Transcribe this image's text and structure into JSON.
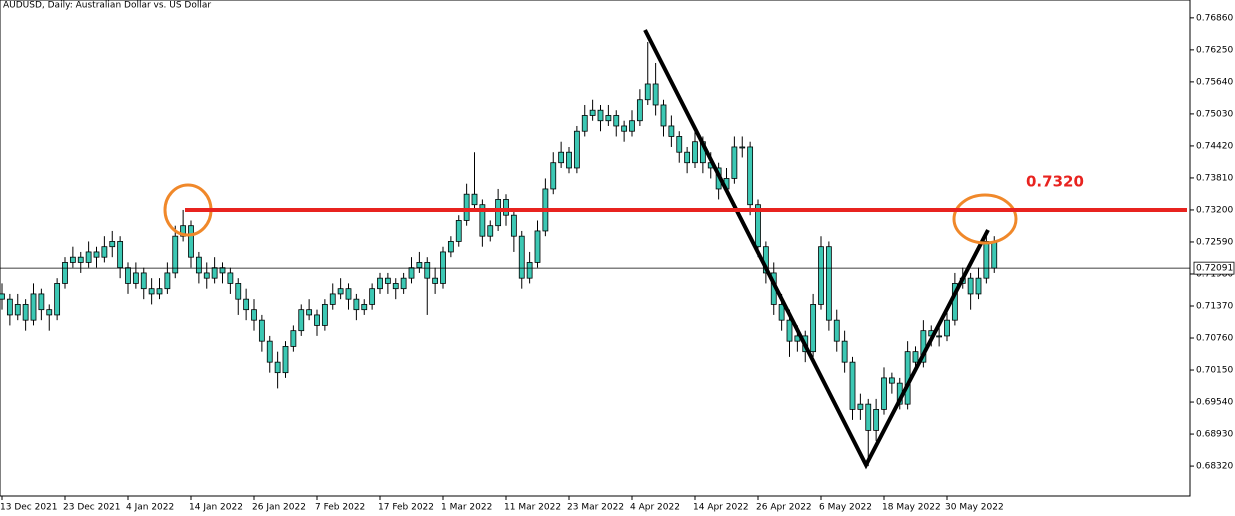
{
  "chart_data": {
    "type": "candlestick",
    "title": "AUDUSD, Daily:  Australian Dollar vs. US Dollar",
    "color": "#3cc8b4",
    "wick_color": "#000000",
    "categories": [
      "13 Dec 2021",
      null,
      null,
      null,
      null,
      null,
      null,
      null,
      "23 Dec 2021",
      null,
      null,
      null,
      null,
      null,
      null,
      null,
      "4 Jan 2022",
      null,
      null,
      null,
      null,
      null,
      null,
      null,
      "14 Jan 2022",
      null,
      null,
      null,
      null,
      null,
      null,
      null,
      "26 Jan 2022",
      null,
      null,
      null,
      null,
      null,
      null,
      null,
      "7 Feb 2022",
      null,
      null,
      null,
      null,
      null,
      null,
      null,
      "17 Feb 2022",
      null,
      null,
      null,
      null,
      null,
      null,
      null,
      "1 Mar 2022",
      null,
      null,
      null,
      null,
      null,
      null,
      null,
      "11 Mar 2022",
      null,
      null,
      null,
      null,
      null,
      null,
      null,
      "23 Mar 2022",
      null,
      null,
      null,
      null,
      null,
      null,
      null,
      "4 Apr 2022",
      null,
      null,
      null,
      null,
      null,
      null,
      null,
      "14 Apr 2022",
      null,
      null,
      null,
      null,
      null,
      null,
      null,
      "26 Apr 2022",
      null,
      null,
      null,
      null,
      null,
      null,
      null,
      "6 May 2022",
      null,
      null,
      null,
      null,
      null,
      null,
      null,
      "18 May 2022",
      null,
      null,
      null,
      null,
      null,
      null,
      null,
      "30 May 2022",
      null,
      null,
      null,
      null,
      null,
      null
    ],
    "ohlc": [
      [
        0.716,
        0.718,
        0.713,
        0.715
      ],
      [
        0.715,
        0.716,
        0.71,
        0.712
      ],
      [
        0.712,
        0.716,
        0.711,
        0.714
      ],
      [
        0.714,
        0.715,
        0.709,
        0.711
      ],
      [
        0.711,
        0.718,
        0.71,
        0.716
      ],
      [
        0.716,
        0.717,
        0.711,
        0.713
      ],
      [
        0.713,
        0.714,
        0.709,
        0.712
      ],
      [
        0.712,
        0.719,
        0.711,
        0.718
      ],
      [
        0.718,
        0.723,
        0.717,
        0.722
      ],
      [
        0.722,
        0.725,
        0.721,
        0.723
      ],
      [
        0.723,
        0.724,
        0.72,
        0.722
      ],
      [
        0.722,
        0.726,
        0.721,
        0.724
      ],
      [
        0.724,
        0.725,
        0.721,
        0.723
      ],
      [
        0.723,
        0.727,
        0.722,
        0.725
      ],
      [
        0.725,
        0.728,
        0.723,
        0.726
      ],
      [
        0.726,
        0.727,
        0.719,
        0.721
      ],
      [
        0.721,
        0.722,
        0.716,
        0.718
      ],
      [
        0.718,
        0.722,
        0.717,
        0.72
      ],
      [
        0.72,
        0.721,
        0.715,
        0.717
      ],
      [
        0.717,
        0.719,
        0.714,
        0.716
      ],
      [
        0.716,
        0.719,
        0.715,
        0.717
      ],
      [
        0.717,
        0.722,
        0.716,
        0.72
      ],
      [
        0.72,
        0.729,
        0.719,
        0.727
      ],
      [
        0.727,
        0.732,
        0.726,
        0.729
      ],
      [
        0.729,
        0.73,
        0.721,
        0.723
      ],
      [
        0.723,
        0.724,
        0.718,
        0.72
      ],
      [
        0.72,
        0.722,
        0.717,
        0.719
      ],
      [
        0.719,
        0.723,
        0.718,
        0.721
      ],
      [
        0.721,
        0.722,
        0.718,
        0.72
      ],
      [
        0.72,
        0.721,
        0.716,
        0.718
      ],
      [
        0.718,
        0.719,
        0.712,
        0.715
      ],
      [
        0.715,
        0.717,
        0.711,
        0.713
      ],
      [
        0.713,
        0.715,
        0.709,
        0.711
      ],
      [
        0.711,
        0.712,
        0.705,
        0.707
      ],
      [
        0.707,
        0.708,
        0.701,
        0.703
      ],
      [
        0.703,
        0.705,
        0.698,
        0.701
      ],
      [
        0.701,
        0.707,
        0.7,
        0.706
      ],
      [
        0.706,
        0.71,
        0.705,
        0.709
      ],
      [
        0.709,
        0.714,
        0.708,
        0.713
      ],
      [
        0.713,
        0.715,
        0.711,
        0.712
      ],
      [
        0.712,
        0.713,
        0.708,
        0.71
      ],
      [
        0.71,
        0.715,
        0.709,
        0.714
      ],
      [
        0.714,
        0.718,
        0.713,
        0.716
      ],
      [
        0.716,
        0.719,
        0.715,
        0.717
      ],
      [
        0.717,
        0.718,
        0.713,
        0.715
      ],
      [
        0.715,
        0.716,
        0.711,
        0.713
      ],
      [
        0.713,
        0.715,
        0.712,
        0.714
      ],
      [
        0.714,
        0.718,
        0.713,
        0.717
      ],
      [
        0.717,
        0.72,
        0.716,
        0.719
      ],
      [
        0.719,
        0.72,
        0.716,
        0.718
      ],
      [
        0.718,
        0.719,
        0.715,
        0.717
      ],
      [
        0.717,
        0.72,
        0.716,
        0.719
      ],
      [
        0.719,
        0.723,
        0.718,
        0.721
      ],
      [
        0.721,
        0.724,
        0.72,
        0.722
      ],
      [
        0.722,
        0.723,
        0.712,
        0.719
      ],
      [
        0.719,
        0.721,
        0.716,
        0.718
      ],
      [
        0.718,
        0.725,
        0.717,
        0.724
      ],
      [
        0.724,
        0.727,
        0.723,
        0.726
      ],
      [
        0.726,
        0.731,
        0.725,
        0.73
      ],
      [
        0.73,
        0.737,
        0.729,
        0.735
      ],
      [
        0.735,
        0.743,
        0.732,
        0.733
      ],
      [
        0.733,
        0.734,
        0.725,
        0.727
      ],
      [
        0.727,
        0.73,
        0.726,
        0.729
      ],
      [
        0.729,
        0.736,
        0.728,
        0.734
      ],
      [
        0.734,
        0.735,
        0.729,
        0.731
      ],
      [
        0.731,
        0.732,
        0.724,
        0.727
      ],
      [
        0.727,
        0.728,
        0.717,
        0.719
      ],
      [
        0.719,
        0.724,
        0.718,
        0.722
      ],
      [
        0.722,
        0.73,
        0.721,
        0.728
      ],
      [
        0.728,
        0.738,
        0.727,
        0.736
      ],
      [
        0.736,
        0.743,
        0.735,
        0.741
      ],
      [
        0.741,
        0.745,
        0.74,
        0.743
      ],
      [
        0.743,
        0.744,
        0.739,
        0.74
      ],
      [
        0.74,
        0.748,
        0.739,
        0.747
      ],
      [
        0.747,
        0.752,
        0.746,
        0.75
      ],
      [
        0.75,
        0.753,
        0.749,
        0.751
      ],
      [
        0.751,
        0.752,
        0.747,
        0.749
      ],
      [
        0.749,
        0.752,
        0.748,
        0.75
      ],
      [
        0.75,
        0.751,
        0.746,
        0.748
      ],
      [
        0.748,
        0.749,
        0.745,
        0.747
      ],
      [
        0.747,
        0.751,
        0.746,
        0.749
      ],
      [
        0.749,
        0.755,
        0.748,
        0.753
      ],
      [
        0.753,
        0.764,
        0.752,
        0.756
      ],
      [
        0.756,
        0.76,
        0.75,
        0.752
      ],
      [
        0.752,
        0.753,
        0.746,
        0.748
      ],
      [
        0.748,
        0.75,
        0.744,
        0.746
      ],
      [
        0.746,
        0.747,
        0.741,
        0.743
      ],
      [
        0.743,
        0.744,
        0.739,
        0.741
      ],
      [
        0.741,
        0.747,
        0.74,
        0.745
      ],
      [
        0.745,
        0.746,
        0.739,
        0.741
      ],
      [
        0.741,
        0.743,
        0.738,
        0.74
      ],
      [
        0.74,
        0.741,
        0.734,
        0.736
      ],
      [
        0.736,
        0.74,
        0.735,
        0.738
      ],
      [
        0.738,
        0.746,
        0.737,
        0.744
      ],
      [
        0.744,
        0.746,
        0.742,
        0.744
      ],
      [
        0.744,
        0.745,
        0.731,
        0.733
      ],
      [
        0.733,
        0.734,
        0.723,
        0.725
      ],
      [
        0.725,
        0.726,
        0.718,
        0.72
      ],
      [
        0.72,
        0.722,
        0.712,
        0.714
      ],
      [
        0.714,
        0.716,
        0.709,
        0.711
      ],
      [
        0.711,
        0.713,
        0.704,
        0.707
      ],
      [
        0.707,
        0.71,
        0.705,
        0.708
      ],
      [
        0.708,
        0.709,
        0.703,
        0.705
      ],
      [
        0.705,
        0.716,
        0.704,
        0.714
      ],
      [
        0.714,
        0.727,
        0.713,
        0.725
      ],
      [
        0.725,
        0.726,
        0.709,
        0.711
      ],
      [
        0.711,
        0.713,
        0.705,
        0.707
      ],
      [
        0.707,
        0.709,
        0.701,
        0.703
      ],
      [
        0.703,
        0.704,
        0.692,
        0.694
      ],
      [
        0.694,
        0.697,
        0.692,
        0.695
      ],
      [
        0.695,
        0.696,
        0.6832,
        0.69
      ],
      [
        0.69,
        0.696,
        0.688,
        0.694
      ],
      [
        0.694,
        0.702,
        0.693,
        0.7
      ],
      [
        0.7,
        0.701,
        0.697,
        0.699
      ],
      [
        0.699,
        0.7,
        0.694,
        0.695
      ],
      [
        0.695,
        0.707,
        0.694,
        0.705
      ],
      [
        0.705,
        0.706,
        0.701,
        0.703
      ],
      [
        0.703,
        0.711,
        0.702,
        0.709
      ],
      [
        0.709,
        0.71,
        0.706,
        0.708
      ],
      [
        0.708,
        0.71,
        0.706,
        0.708
      ],
      [
        0.708,
        0.713,
        0.707,
        0.711
      ],
      [
        0.711,
        0.72,
        0.71,
        0.718
      ],
      [
        0.718,
        0.721,
        0.717,
        0.719
      ],
      [
        0.719,
        0.72,
        0.713,
        0.716
      ],
      [
        0.716,
        0.721,
        0.715,
        0.719
      ],
      [
        0.719,
        0.728,
        0.718,
        0.726
      ],
      [
        0.726,
        0.727,
        0.72,
        0.7209
      ]
    ],
    "ylim": [
      0.6775,
      0.772
    ],
    "yticks": [
      {
        "value": 0.7686,
        "label": "0.76860"
      },
      {
        "value": 0.7625,
        "label": "0.76250"
      },
      {
        "value": 0.7564,
        "label": "0.75640"
      },
      {
        "value": 0.7503,
        "label": "0.75030"
      },
      {
        "value": 0.7442,
        "label": "0.74420"
      },
      {
        "value": 0.7381,
        "label": "0.73810"
      },
      {
        "value": 0.732,
        "label": "0.73200"
      },
      {
        "value": 0.7259,
        "label": "0.72590"
      },
      {
        "value": 0.7198,
        "label": "0.71980"
      },
      {
        "value": 0.7137,
        "label": "0.71370"
      },
      {
        "value": 0.7076,
        "label": "0.70760"
      },
      {
        "value": 0.7015,
        "label": "0.70150"
      },
      {
        "value": 0.6954,
        "label": "0.69540"
      },
      {
        "value": 0.6893,
        "label": "0.68930"
      },
      {
        "value": 0.6832,
        "label": "0.68320"
      }
    ],
    "current_price": 0.72091,
    "level": {
      "value": 0.732,
      "label": "0.7320"
    },
    "level_color": "#e8231f"
  }
}
